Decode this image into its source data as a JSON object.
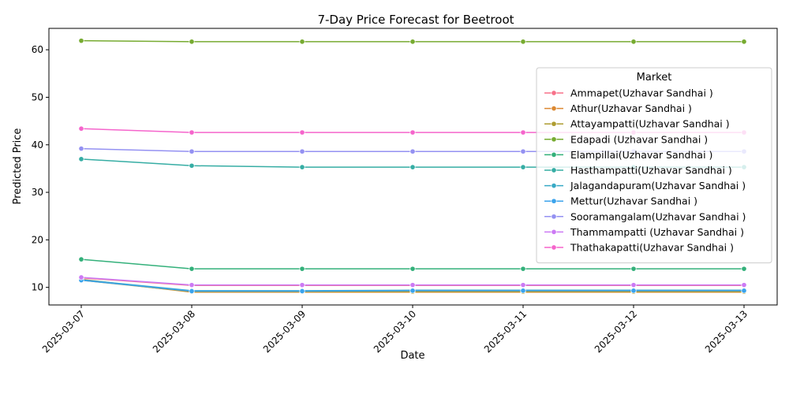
{
  "chart_data": {
    "type": "line",
    "title": "7-Day Price Forecast for Beetroot",
    "xlabel": "Date",
    "ylabel": "Predicted Price",
    "x": [
      "2025-03-07",
      "2025-03-08",
      "2025-03-09",
      "2025-03-10",
      "2025-03-11",
      "2025-03-12",
      "2025-03-13"
    ],
    "yticks": [
      10,
      20,
      30,
      40,
      50,
      60
    ],
    "ylim": [
      6.3,
      64.5
    ],
    "legend_title": "Market",
    "legend_position": "right",
    "marker": "circle",
    "series": [
      {
        "name": "Ammapet(Uzhavar Sandhai )",
        "color": "#f77189",
        "values": [
          12.0,
          10.4,
          10.4,
          10.4,
          10.4,
          10.4,
          10.4
        ]
      },
      {
        "name": "Athur(Uzhavar Sandhai )",
        "color": "#dc8932",
        "values": [
          11.7,
          9.0,
          9.0,
          9.0,
          9.0,
          9.0,
          9.0
        ]
      },
      {
        "name": "Attayampatti(Uzhavar Sandhai )",
        "color": "#ae9d31",
        "values": [
          11.5,
          9.1,
          9.1,
          9.1,
          9.1,
          9.1,
          9.1
        ]
      },
      {
        "name": "Edapadi (Uzhavar Sandhai )",
        "color": "#77ab31",
        "values": [
          61.9,
          61.7,
          61.7,
          61.7,
          61.7,
          61.7,
          61.7
        ]
      },
      {
        "name": "Elampillai(Uzhavar Sandhai )",
        "color": "#33b07a",
        "values": [
          15.9,
          13.9,
          13.9,
          13.9,
          13.9,
          13.9,
          13.9
        ]
      },
      {
        "name": "Hasthampatti(Uzhavar Sandhai )",
        "color": "#36ada4",
        "values": [
          37.0,
          35.6,
          35.3,
          35.3,
          35.3,
          35.3,
          35.3
        ]
      },
      {
        "name": "Jalagandapuram(Uzhavar Sandhai )",
        "color": "#38a9c5",
        "values": [
          11.6,
          9.3,
          9.3,
          9.4,
          9.4,
          9.4,
          9.4
        ]
      },
      {
        "name": "Mettur(Uzhavar Sandhai )",
        "color": "#3ba3ec",
        "values": [
          11.5,
          9.2,
          9.2,
          9.3,
          9.3,
          9.3,
          9.3
        ]
      },
      {
        "name": "Sooramangalam(Uzhavar Sandhai )",
        "color": "#9491f2",
        "values": [
          39.2,
          38.6,
          38.6,
          38.6,
          38.6,
          38.6,
          38.6
        ]
      },
      {
        "name": "Thammampatti (Uzhavar Sandhai )",
        "color": "#cc7af4",
        "values": [
          12.1,
          10.5,
          10.5,
          10.5,
          10.5,
          10.5,
          10.5
        ]
      },
      {
        "name": "Thathakapatti(Uzhavar Sandhai )",
        "color": "#f565cc",
        "values": [
          43.4,
          42.6,
          42.6,
          42.6,
          42.6,
          42.6,
          42.6
        ]
      }
    ]
  }
}
